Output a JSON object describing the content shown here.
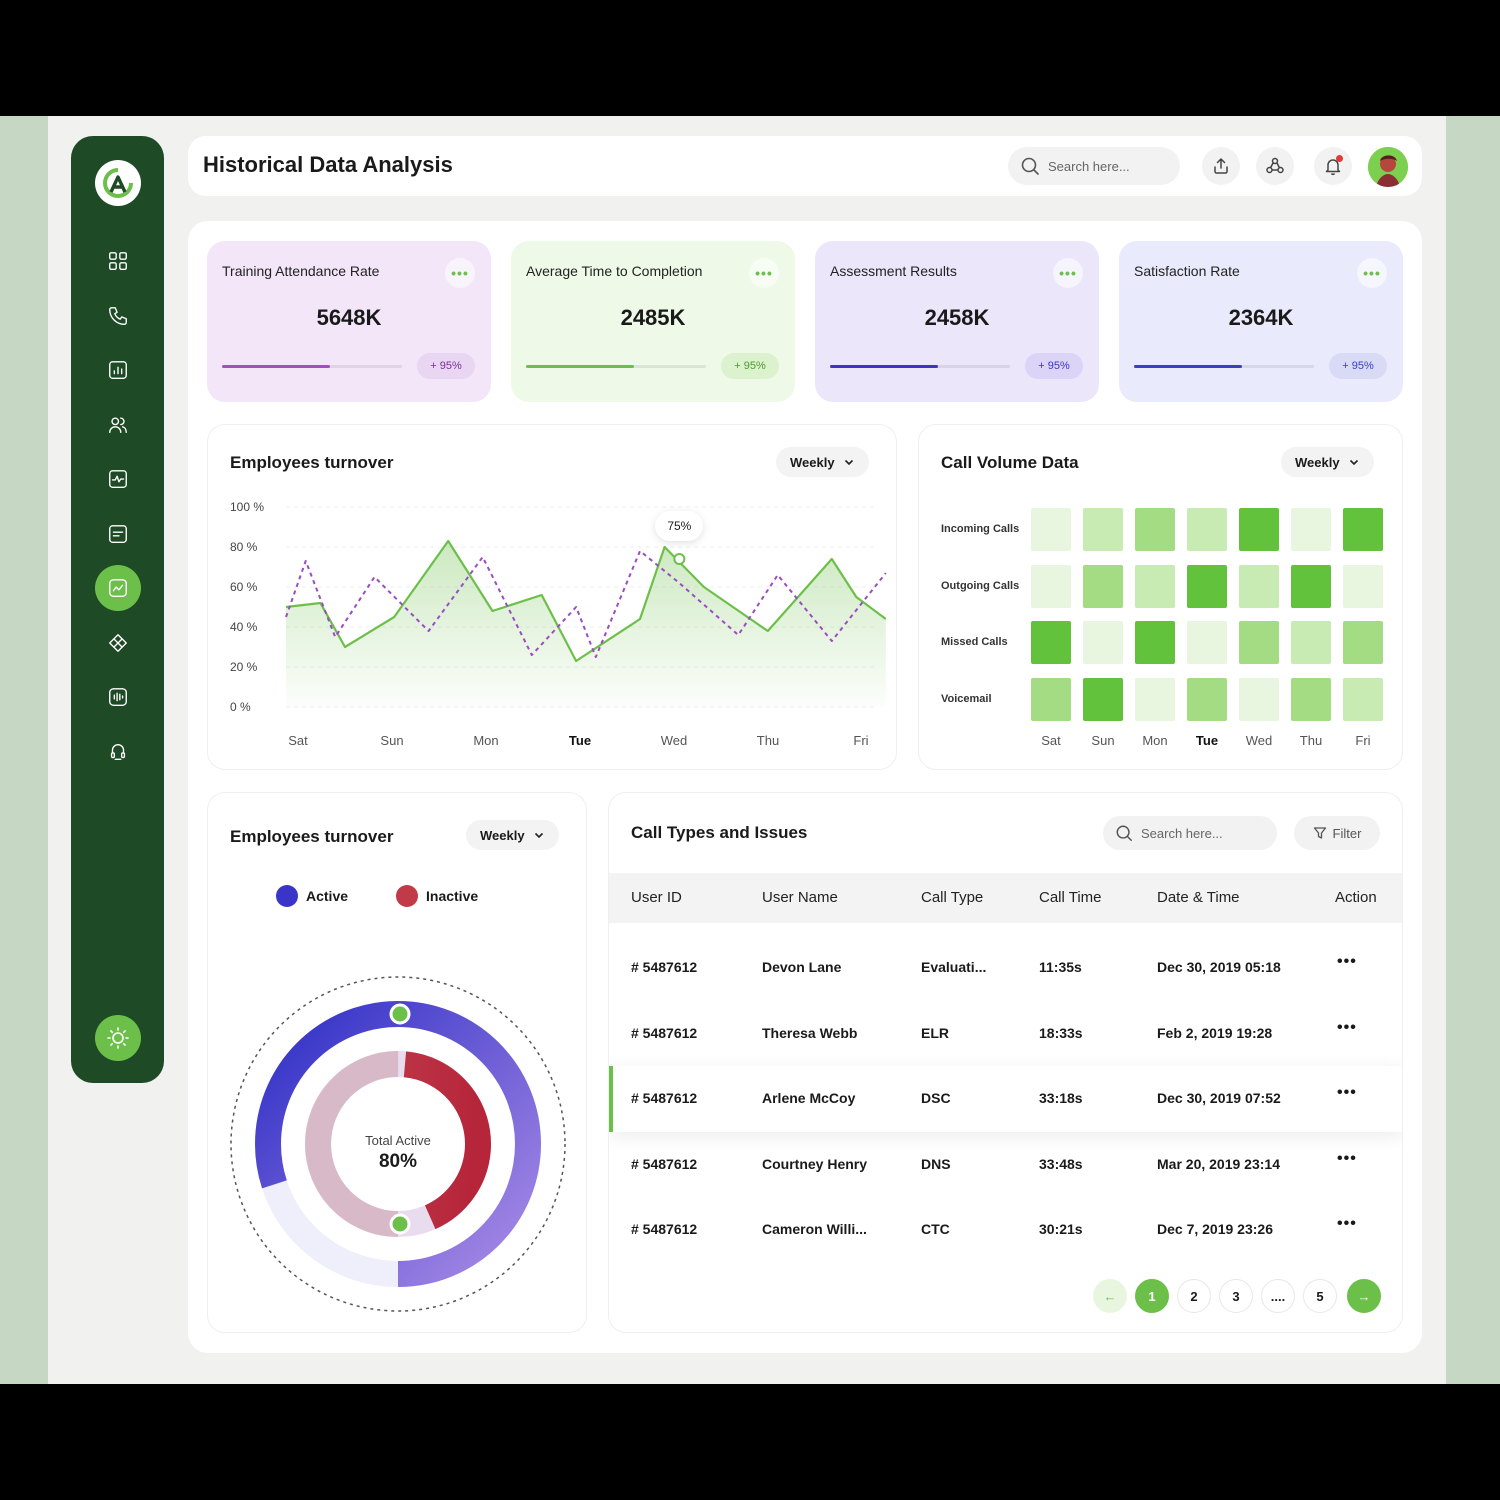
{
  "header": {
    "title": "Historical Data Analysis",
    "search_placeholder": "Search here..."
  },
  "sidebar": {
    "logo_icon": "brand-logo-icon",
    "items": [
      {
        "icon": "dashboard-grid-icon"
      },
      {
        "icon": "phone-icon"
      },
      {
        "icon": "report-chart-icon"
      },
      {
        "icon": "users-icon"
      },
      {
        "icon": "activity-monitor-icon"
      },
      {
        "icon": "message-icon"
      },
      {
        "icon": "analytics-icon",
        "active": true
      },
      {
        "icon": "integration-icon"
      },
      {
        "icon": "audio-icon"
      },
      {
        "icon": "headset-icon"
      }
    ],
    "theme_icon": "sun-icon"
  },
  "stats": [
    {
      "label": "Training Attendance Rate",
      "value": "5648K",
      "badge": "+ 95%",
      "progress": 0.6,
      "bg": "#f2e6f8",
      "fill": "#a54ec0",
      "badge_bg": "#e9d6f2",
      "badge_color": "#7a2e95"
    },
    {
      "label": "Average Time to Completion",
      "value": "2485K",
      "badge": "+ 95%",
      "progress": 0.6,
      "bg": "#eef9e8",
      "fill": "#6cc04a",
      "badge_bg": "#dcf2cf",
      "badge_color": "#4a9a2a"
    },
    {
      "label": "Assessment Results",
      "value": "2458K",
      "badge": "+ 95%",
      "progress": 0.6,
      "bg": "#ebe6fa",
      "fill": "#3f33c4",
      "badge_bg": "#dcd4f6",
      "badge_color": "#3f33c4"
    },
    {
      "label": "Satisfaction Rate",
      "value": "2364K",
      "badge": "+ 95%",
      "progress": 0.6,
      "bg": "#e9eafc",
      "fill": "#3a3ec4",
      "badge_bg": "#d8daf6",
      "badge_color": "#3a3ec4"
    }
  ],
  "turnover_line": {
    "title": "Employees turnover",
    "dropdown": "Weekly",
    "tooltip": "75%"
  },
  "chart_data": [
    {
      "type": "line",
      "categories": [
        "Sat",
        "Sun",
        "Mon",
        "Tue",
        "Wed",
        "Thu",
        "Fri"
      ],
      "highlight_category": "Tue",
      "y_ticks": [
        "100 %",
        "80 %",
        "60 %",
        "40 %",
        "20 %",
        "0 %"
      ],
      "ylim": [
        0,
        100
      ],
      "series": [
        {
          "style": "solid",
          "color": "#6cc04a",
          "fill": true,
          "x": [
            0,
            0.35,
            0.6,
            1.1,
            1.65,
            2.1,
            2.6,
            2.95,
            3.6,
            3.85,
            4.25,
            4.9,
            5.55,
            5.8,
            6.1
          ],
          "y": [
            50,
            52,
            30,
            45,
            83,
            48,
            56,
            23,
            44,
            80,
            60,
            38,
            74,
            55,
            44
          ]
        },
        {
          "style": "dashed",
          "color": "#9a4cc2",
          "x": [
            0,
            0.2,
            0.5,
            0.9,
            1.45,
            2.0,
            2.5,
            2.95,
            3.15,
            3.6,
            4.0,
            4.6,
            5.0,
            5.55,
            6.1
          ],
          "y": [
            45,
            73,
            35,
            65,
            38,
            75,
            26,
            50,
            25,
            78,
            62,
            36,
            66,
            33,
            67
          ]
        }
      ],
      "tooltip_point": {
        "x": 4.0,
        "y": 74,
        "label": "75%"
      }
    },
    {
      "type": "heatmap",
      "rows": [
        "Incoming Calls",
        "Outgoing Calls",
        "Missed Calls",
        "Voicemail"
      ],
      "columns": [
        "Sat",
        "Sun",
        "Mon",
        "Tue",
        "Wed",
        "Thu",
        "Fri"
      ],
      "highlight_column": "Tue",
      "levels": [
        [
          1,
          2,
          3,
          2,
          4,
          1,
          4
        ],
        [
          1,
          3,
          2,
          4,
          2,
          4,
          1
        ],
        [
          4,
          1,
          4,
          1,
          3,
          2,
          3
        ],
        [
          3,
          4,
          1,
          3,
          1,
          3,
          2
        ]
      ],
      "level_colors": [
        "#ffffff",
        "#e8f6e0",
        "#c8ebb4",
        "#a4dc84",
        "#62c23c"
      ]
    },
    {
      "type": "pie",
      "center_label": "Total Active",
      "center_value": "80%",
      "series": [
        {
          "name": "Active",
          "value": 80,
          "color": "#3a34c8"
        },
        {
          "name": "Inactive",
          "value": 20,
          "color": "#c03a4a"
        }
      ]
    }
  ],
  "call_volume": {
    "title": "Call Volume Data",
    "dropdown": "Weekly"
  },
  "turnover_donut": {
    "title": "Employees turnover",
    "dropdown": "Weekly",
    "legend": [
      {
        "label": "Active",
        "color": "#3a34c8"
      },
      {
        "label": "Inactive",
        "color": "#c03a4a"
      }
    ],
    "center_label": "Total Active",
    "center_value": "80%"
  },
  "calls_table": {
    "title": "Call Types and Issues",
    "search_placeholder": "Search here...",
    "filter_label": "Filter",
    "columns": [
      "User ID",
      "User Name",
      "Call Type",
      "Call Time",
      "Date & Time",
      "Action"
    ],
    "rows": [
      {
        "id": "# 5487612",
        "name": "Devon Lane",
        "type": "Evaluati...",
        "time": "11:35s",
        "date": "Dec 30, 2019 05:18"
      },
      {
        "id": "# 5487612",
        "name": "Theresa Webb",
        "type": "ELR",
        "time": "18:33s",
        "date": "Feb 2, 2019 19:28"
      },
      {
        "id": "# 5487612",
        "name": "Arlene McCoy",
        "type": "DSC",
        "time": "33:18s",
        "date": "Dec 30, 2019 07:52",
        "highlight": true
      },
      {
        "id": "# 5487612",
        "name": "Courtney Henry",
        "type": "DNS",
        "time": "33:48s",
        "date": "Mar 20, 2019 23:14"
      },
      {
        "id": "# 5487612",
        "name": "Cameron Willi...",
        "type": "CTC",
        "time": "30:21s",
        "date": "Dec 7, 2019 23:26"
      }
    ],
    "pagination": [
      "1",
      "2",
      "3",
      "....",
      "5"
    ],
    "current_page": "1"
  }
}
